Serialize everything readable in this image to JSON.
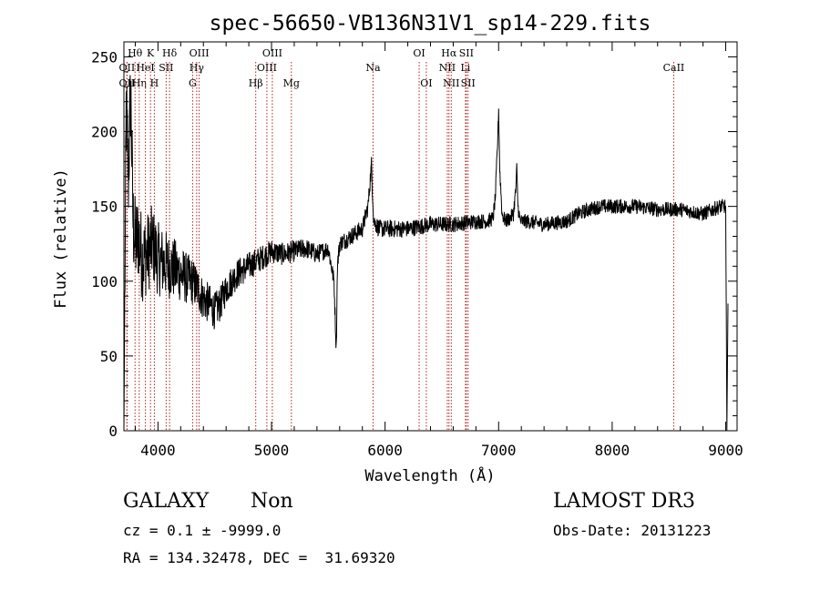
{
  "chart_data": {
    "type": "line",
    "title": "spec-56650-VB136N31V1_sp14-229.fits",
    "xlabel": "Wavelength (Å)",
    "ylabel": "Flux (relative)",
    "xlim": [
      3700,
      9100
    ],
    "ylim": [
      0,
      260
    ],
    "xticks": [
      4000,
      5000,
      6000,
      7000,
      8000,
      9000
    ],
    "xtick_labels": [
      "4000",
      "5000",
      "6000",
      "7000",
      "8000",
      "9000"
    ],
    "yticks": [
      0,
      50,
      100,
      150,
      200,
      250
    ],
    "ytick_labels": [
      "0",
      "50",
      "100",
      "150",
      "200",
      "250"
    ],
    "grid": false,
    "line_color": "#000000",
    "marker_color": "#b22222",
    "spectrum_anchors": {
      "x": [
        3700,
        3720,
        3740,
        3760,
        3780,
        3800,
        3830,
        3860,
        3900,
        3950,
        4000,
        4050,
        4100,
        4150,
        4200,
        4250,
        4300,
        4350,
        4400,
        4450,
        4500,
        4550,
        4600,
        4650,
        4700,
        4800,
        4900,
        5000,
        5100,
        5200,
        5300,
        5400,
        5500,
        5550,
        5570,
        5580,
        5600,
        5700,
        5800,
        5850,
        5880,
        5900,
        5950,
        6000,
        6200,
        6400,
        6600,
        6800,
        6900,
        6950,
        6970,
        6990,
        7000,
        7010,
        7030,
        7060,
        7100,
        7130,
        7150,
        7160,
        7170,
        7190,
        7250,
        7400,
        7600,
        7700,
        7800,
        7900,
        8000,
        8200,
        8400,
        8600,
        8800,
        8950,
        9000,
        9010,
        9020
      ],
      "y": [
        0,
        215,
        170,
        230,
        140,
        125,
        130,
        115,
        118,
        125,
        115,
        112,
        110,
        108,
        105,
        102,
        100,
        95,
        88,
        85,
        80,
        85,
        95,
        100,
        105,
        110,
        115,
        120,
        118,
        120,
        122,
        118,
        122,
        100,
        55,
        110,
        125,
        130,
        135,
        150,
        178,
        140,
        135,
        135,
        135,
        138,
        138,
        140,
        140,
        142,
        155,
        190,
        215,
        175,
        145,
        140,
        142,
        145,
        160,
        175,
        150,
        140,
        140,
        138,
        140,
        145,
        148,
        150,
        150,
        150,
        148,
        148,
        145,
        150,
        150,
        0,
        85
      ],
      "noise_amplitude": {
        "x": [
          3700,
          3900,
          4100,
          4300,
          4600,
          5000,
          5500,
          6000,
          7000,
          8000,
          9000
        ],
        "a": [
          35,
          28,
          22,
          16,
          11,
          8,
          6,
          6,
          5,
          5,
          5
        ]
      }
    },
    "line_markers": [
      {
        "label": "OII",
        "wavelength": 3727,
        "row": 2
      },
      {
        "label": "OII",
        "wavelength": 3727,
        "row": 3
      },
      {
        "label": "Hθ",
        "wavelength": 3798,
        "row": 1
      },
      {
        "label": "Hη",
        "wavelength": 3835,
        "row": 3
      },
      {
        "label": "HeI",
        "wavelength": 3889,
        "row": 2
      },
      {
        "label": "K",
        "wavelength": 3934,
        "row": 1
      },
      {
        "label": "SII",
        "wavelength": 4072,
        "row": 2
      },
      {
        "label": "H",
        "wavelength": 3968,
        "row": 3
      },
      {
        "label": "Hδ",
        "wavelength": 4102,
        "row": 1
      },
      {
        "label": "OIII",
        "wavelength": 4363,
        "row": 1
      },
      {
        "label": "Hγ",
        "wavelength": 4341,
        "row": 2
      },
      {
        "label": "G",
        "wavelength": 4305,
        "row": 3
      },
      {
        "label": "Hβ",
        "wavelength": 4861,
        "row": 3
      },
      {
        "label": "OIII",
        "wavelength": 4959,
        "row": 2
      },
      {
        "label": "OIII",
        "wavelength": 5007,
        "row": 1
      },
      {
        "label": "Mg",
        "wavelength": 5175,
        "row": 3
      },
      {
        "label": "Na",
        "wavelength": 5894,
        "row": 2
      },
      {
        "label": "OI",
        "wavelength": 6300,
        "row": 1
      },
      {
        "label": "OI",
        "wavelength": 6363,
        "row": 3
      },
      {
        "label": "Hα",
        "wavelength": 6563,
        "row": 1
      },
      {
        "label": "SII",
        "wavelength": 6716,
        "row": 1
      },
      {
        "label": "NII",
        "wavelength": 6548,
        "row": 2
      },
      {
        "label": "Li",
        "wavelength": 6708,
        "row": 2
      },
      {
        "label": "NII",
        "wavelength": 6583,
        "row": 3
      },
      {
        "label": "SII",
        "wavelength": 6731,
        "row": 3
      },
      {
        "label": "CaII",
        "wavelength": 8542,
        "row": 2
      }
    ]
  },
  "footer": {
    "object_class": "GALAXY",
    "subclass": "Non",
    "survey": "LAMOST DR3",
    "cz_line": "cz = 0.1 ± -9999.0",
    "obs_date": "Obs-Date: 20131223",
    "coords": "RA = 134.32478, DEC =  31.69320"
  }
}
